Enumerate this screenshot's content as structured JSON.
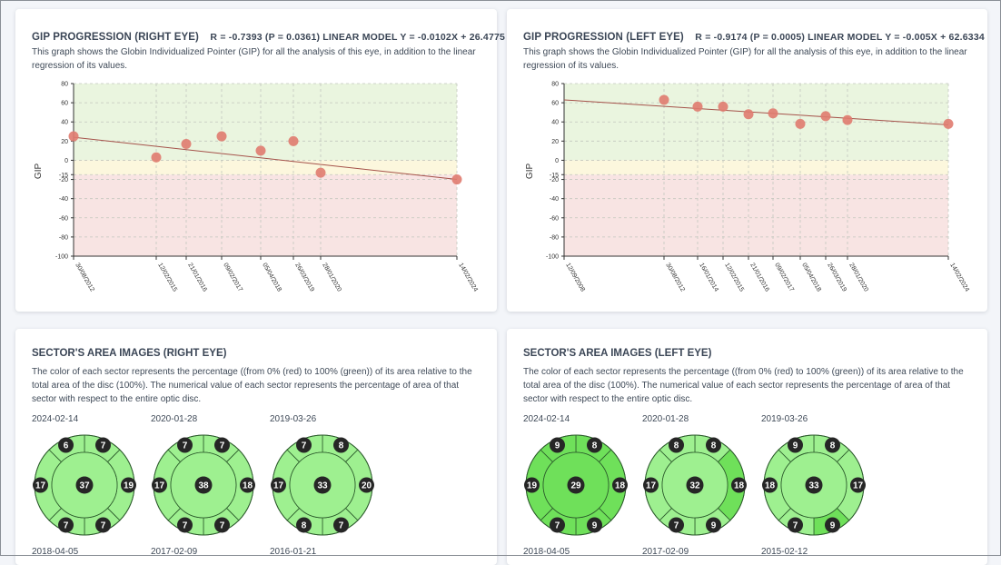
{
  "gip_right": {
    "title": "GIP PROGRESSION (RIGHT EYE)",
    "stats": "R = -0.7393  (P = 0.0361)  LINEAR MODEL Y = -0.0102X + 26.4775",
    "description": "This graph shows the Globin Individualized Pointer (GIP) for all the analysis of this eye, in addition to the linear regression of its values.",
    "chart_data": {
      "type": "scatter",
      "ylabel": "GIP",
      "ylim": [
        -100,
        80
      ],
      "yticks": [
        "80",
        "60",
        "40",
        "20",
        "0",
        "-15",
        "-20",
        "-40",
        "-60",
        "-80",
        "-100"
      ],
      "x": [
        "30/08/2012",
        "12/02/2015",
        "21/01/2016",
        "09/02/2017",
        "05/04/2018",
        "26/03/2019",
        "28/01/2020",
        "14/02/2024"
      ],
      "y": [
        25,
        3,
        17,
        25,
        10,
        20,
        -13,
        -20
      ],
      "trend": {
        "start": 24,
        "end": -20
      },
      "zones": [
        {
          "from": 0,
          "to": 80,
          "color": "#eaf5df"
        },
        {
          "from": -15,
          "to": 0,
          "color": "#fcf7dd"
        },
        {
          "from": -100,
          "to": -15,
          "color": "#f8e4e3"
        }
      ],
      "point_color": "#e07b6f",
      "line_color": "#a5524a"
    }
  },
  "gip_left": {
    "title": "GIP PROGRESSION (LEFT EYE)",
    "stats": "R = -0.9174  (P = 0.0005)  LINEAR MODEL Y = -0.005X + 62.6334",
    "description": "This graph shows the Globin Individualized Pointer (GIP) for all the analysis of this eye, in addition to the linear regression of its values.",
    "chart_data": {
      "type": "scatter",
      "ylabel": "GIP",
      "ylim": [
        -100,
        80
      ],
      "yticks": [
        "80",
        "60",
        "40",
        "20",
        "0",
        "-15",
        "-20",
        "-40",
        "-60",
        "-80",
        "-100"
      ],
      "x": [
        "12/09/2008",
        "30/08/2012",
        "16/01/2014",
        "12/02/2015",
        "21/01/2016",
        "09/02/2017",
        "05/04/2018",
        "26/03/2019",
        "28/01/2020",
        "14/02/2024"
      ],
      "y": [
        null,
        63,
        56,
        56,
        48,
        49,
        38,
        46,
        42,
        38
      ],
      "trend": {
        "start": 63,
        "end": 37
      },
      "zones": [
        {
          "from": 0,
          "to": 80,
          "color": "#eaf5df"
        },
        {
          "from": -15,
          "to": 0,
          "color": "#fcf7dd"
        },
        {
          "from": -100,
          "to": -15,
          "color": "#f8e4e3"
        }
      ],
      "point_color": "#e07b6f",
      "line_color": "#a5524a"
    }
  },
  "sector_right": {
    "title": "SECTOR'S AREA IMAGES (RIGHT EYE)",
    "description": "The color of each sector represents the percentage ((from 0% (red) to 100% (green)) of its area relative to the total area of the disc (100%). The numerical value of each sector represents the percentage of area of that sector with respect to the entire optic disc.",
    "images": [
      {
        "date": "2024-02-14",
        "center": "37",
        "sectors": [
          "7",
          "19",
          "7",
          "7",
          "17",
          "6"
        ],
        "fills": [
          "#9ef090",
          "#9ef090",
          "#9ef090",
          "#9ef090",
          "#9ef090",
          "#9ef090"
        ],
        "center_fill": "#9ef090"
      },
      {
        "date": "2020-01-28",
        "center": "38",
        "sectors": [
          "7",
          "18",
          "7",
          "7",
          "17",
          "7"
        ],
        "fills": [
          "#9ef090",
          "#9ef090",
          "#9ef090",
          "#9ef090",
          "#9ef090",
          "#9ef090"
        ],
        "center_fill": "#9ef090"
      },
      {
        "date": "2019-03-26",
        "center": "33",
        "sectors": [
          "8",
          "20",
          "7",
          "8",
          "17",
          "7"
        ],
        "fills": [
          "#9ef090",
          "#9ef090",
          "#9ef090",
          "#9ef090",
          "#9ef090",
          "#9ef090"
        ],
        "center_fill": "#9ef090"
      }
    ],
    "next_dates": [
      "2018-04-05",
      "2017-02-09",
      "2016-01-21"
    ]
  },
  "sector_left": {
    "title": "SECTOR'S AREA IMAGES (LEFT EYE)",
    "description": "The color of each sector represents the percentage ((from 0% (red) to 100% (green)) of its area relative to the total area of the disc (100%). The numerical value of each sector represents the percentage of area of that sector with respect to the entire optic disc.",
    "images": [
      {
        "date": "2024-02-14",
        "center": "29",
        "sectors": [
          "8",
          "18",
          "9",
          "7",
          "19",
          "9"
        ],
        "fills": [
          "#6fe05a",
          "#6fe05a",
          "#6fe05a",
          "#6fe05a",
          "#6fe05a",
          "#6fe05a"
        ],
        "center_fill": "#6fe05a"
      },
      {
        "date": "2020-01-28",
        "center": "32",
        "sectors": [
          "8",
          "18",
          "9",
          "7",
          "17",
          "8"
        ],
        "fills": [
          "#9ef090",
          "#6fe05a",
          "#9ef090",
          "#9ef090",
          "#9ef090",
          "#9ef090"
        ],
        "center_fill": "#9ef090"
      },
      {
        "date": "2019-03-26",
        "center": "33",
        "sectors": [
          "8",
          "17",
          "9",
          "7",
          "18",
          "9"
        ],
        "fills": [
          "#9ef090",
          "#9ef090",
          "#6fe05a",
          "#9ef090",
          "#9ef090",
          "#9ef090"
        ],
        "center_fill": "#9ef090"
      }
    ],
    "next_dates": [
      "2018-04-05",
      "2017-02-09",
      "2015-02-12"
    ]
  }
}
